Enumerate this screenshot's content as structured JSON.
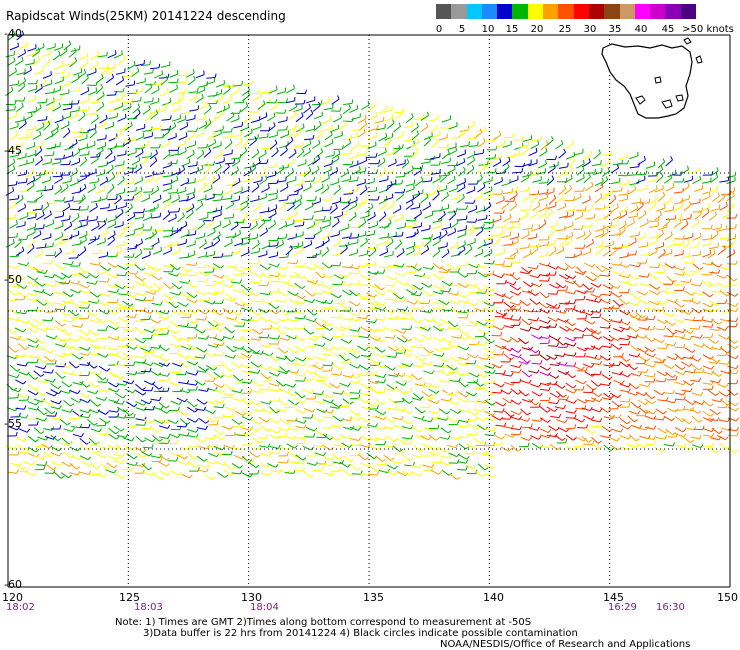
{
  "title": "Rapidscat Winds(25KM) 20141224 descending",
  "legend": {
    "labels": [
      "0",
      "5",
      "10",
      "15",
      "20",
      "25",
      "30",
      "35",
      "40",
      "45",
      ">50 knots"
    ],
    "colors": [
      "#555555",
      "#999999",
      "#00c8ff",
      "#1a8cff",
      "#0000cc",
      "#00b400",
      "#ffff00",
      "#ffa000",
      "#ff5000",
      "#ff0000",
      "#aa0000",
      "#8b4513",
      "#cc9966",
      "#ff00ff",
      "#cc00cc",
      "#8a00b4",
      "#4b0082"
    ]
  },
  "map": {
    "lon_range": [
      120,
      150
    ],
    "lat_range": [
      -60,
      -40
    ],
    "lon_labels": [
      "120",
      "125",
      "130",
      "135",
      "140",
      "145",
      "150"
    ],
    "lat_labels": [
      "-40",
      "-45",
      "-50",
      "-55",
      "-60"
    ],
    "times": [
      {
        "lon": 120.5,
        "label": "18:02"
      },
      {
        "lon": 125.8,
        "label": "18:03"
      },
      {
        "lon": 130.5,
        "label": "18:04"
      },
      {
        "lon": 145.5,
        "label": "16:29"
      },
      {
        "lon": 147.5,
        "label": "16:30"
      }
    ]
  },
  "notes": [
    "Note: 1) Times are GMT 2)Times along bottom correspond to measurement at -50S",
    "3)Data buffer is 22 hrs from 20141224 4) Black circles indicate possible contamination",
    "NOAA/NESDIS/Office of Research and Applications"
  ]
}
